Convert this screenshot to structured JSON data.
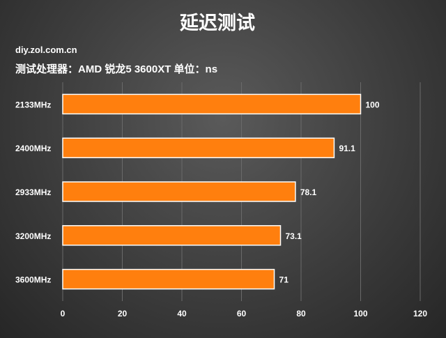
{
  "chart_data": {
    "type": "bar",
    "orientation": "horizontal",
    "title": "延迟测试",
    "source": "diy.zol.com.cn",
    "subtitle": "测试处理器：AMD 锐龙5 3600XT  单位：ns",
    "categories": [
      "2133MHz",
      "2400MHz",
      "2933MHz",
      "3200MHz",
      "3600MHz"
    ],
    "values": [
      100,
      91.1,
      78.1,
      73.1,
      71
    ],
    "value_labels": [
      "100",
      "91.1",
      "78.1",
      "73.1",
      "71"
    ],
    "x_ticks": [
      "0",
      "20",
      "40",
      "60",
      "80",
      "100",
      "120"
    ],
    "xlim": [
      0,
      120
    ],
    "grid": true,
    "legend": "none",
    "bar_color": "#ff7f0e",
    "bar_edge_color": "#ffffff"
  }
}
